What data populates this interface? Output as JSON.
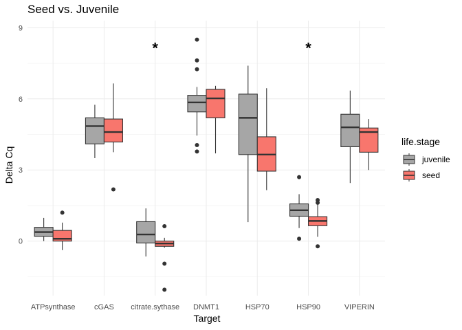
{
  "chart_data": {
    "type": "boxplot",
    "title": "Seed vs. Juvenile",
    "xlabel": "Target",
    "ylabel": "Delta Cq",
    "categories": [
      "ATPsynthase",
      "cGAS",
      "citrate.sythase",
      "DNMT1",
      "HSP70",
      "HSP90",
      "VIPERIN"
    ],
    "ylim": [
      -2.3,
      9.3
    ],
    "yticks": [
      0,
      3,
      6,
      9
    ],
    "grid": true,
    "legend": {
      "title": "life.stage",
      "position": "right"
    },
    "series": [
      {
        "name": "juvenile",
        "color": "#a6a6a6",
        "boxes": [
          {
            "category": "ATPsynthase",
            "whisker_low": 0.0,
            "q1": 0.2,
            "median": 0.38,
            "q3": 0.58,
            "whisker_high": 0.98,
            "outliers": []
          },
          {
            "category": "cGAS",
            "whisker_low": 3.5,
            "q1": 4.1,
            "median": 4.85,
            "q3": 5.2,
            "whisker_high": 5.75,
            "outliers": []
          },
          {
            "category": "citrate.sythase",
            "whisker_low": -0.65,
            "q1": -0.08,
            "median": 0.28,
            "q3": 0.82,
            "whisker_high": 1.38,
            "outliers": []
          },
          {
            "category": "DNMT1",
            "whisker_low": 4.45,
            "q1": 5.45,
            "median": 5.85,
            "q3": 6.15,
            "whisker_high": 6.5,
            "outliers": [
              4.05,
              3.78,
              7.25,
              7.62,
              8.5
            ]
          },
          {
            "category": "HSP70",
            "whisker_low": 0.8,
            "q1": 3.65,
            "median": 5.2,
            "q3": 6.2,
            "whisker_high": 7.4,
            "outliers": []
          },
          {
            "category": "HSP90",
            "whisker_low": 0.55,
            "q1": 1.05,
            "median": 1.3,
            "q3": 1.57,
            "whisker_high": 1.98,
            "outliers": [
              0.1,
              2.7
            ]
          },
          {
            "category": "VIPERIN",
            "whisker_low": 2.45,
            "q1": 3.98,
            "median": 4.8,
            "q3": 5.35,
            "whisker_high": 6.35,
            "outliers": []
          }
        ]
      },
      {
        "name": "seed",
        "color": "#f8766d",
        "boxes": [
          {
            "category": "ATPsynthase",
            "whisker_low": -0.38,
            "q1": 0.0,
            "median": 0.1,
            "q3": 0.45,
            "whisker_high": 0.78,
            "outliers": [
              1.2
            ]
          },
          {
            "category": "cGAS",
            "whisker_low": 3.75,
            "q1": 4.18,
            "median": 4.6,
            "q3": 5.15,
            "whisker_high": 6.65,
            "outliers": [
              2.18
            ]
          },
          {
            "category": "citrate.sythase",
            "whisker_low": -0.28,
            "q1": -0.22,
            "median": -0.1,
            "q3": 0.0,
            "whisker_high": 0.14,
            "outliers": [
              0.63,
              -0.95,
              -2.05
            ]
          },
          {
            "category": "DNMT1",
            "whisker_low": 3.7,
            "q1": 5.2,
            "median": 6.02,
            "q3": 6.4,
            "whisker_high": 6.55,
            "outliers": []
          },
          {
            "category": "HSP70",
            "whisker_low": 2.15,
            "q1": 2.95,
            "median": 3.65,
            "q3": 4.4,
            "whisker_high": 6.45,
            "outliers": []
          },
          {
            "category": "HSP90",
            "whisker_low": 0.18,
            "q1": 0.65,
            "median": 0.85,
            "q3": 1.03,
            "whisker_high": 1.55,
            "outliers": [
              1.62,
              1.73,
              -0.22
            ]
          },
          {
            "category": "VIPERIN",
            "whisker_low": 3.0,
            "q1": 3.75,
            "median": 4.6,
            "q3": 4.77,
            "whisker_high": 5.15,
            "outliers": []
          }
        ]
      }
    ],
    "annotations": [
      {
        "category": "citrate.sythase",
        "y": 8.3,
        "text": "*"
      },
      {
        "category": "HSP90",
        "y": 8.3,
        "text": "*"
      }
    ]
  }
}
